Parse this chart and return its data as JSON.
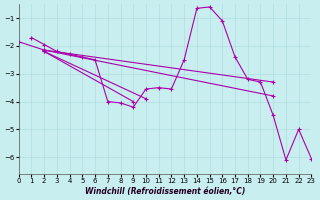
{
  "background_color": "#c8eef0",
  "grid_color": "#b0dde0",
  "line_color": "#aa00aa",
  "xlabel": "Windchill (Refroidissement éolien,°C)",
  "xlim": [
    0,
    23
  ],
  "ylim": [
    -6.6,
    -0.5
  ],
  "yticks": [
    -6,
    -5,
    -4,
    -3,
    -2,
    -1
  ],
  "xticks": [
    0,
    1,
    2,
    3,
    4,
    5,
    6,
    7,
    8,
    9,
    10,
    11,
    12,
    13,
    14,
    15,
    16,
    17,
    18,
    19,
    20,
    21,
    22,
    23
  ],
  "lines": [
    {
      "x": [
        1,
        2,
        3,
        4,
        5,
        6,
        7,
        8,
        9,
        10,
        11,
        12,
        13,
        14,
        15,
        16,
        17,
        18,
        19,
        20,
        21,
        22,
        23
      ],
      "y": [
        -1.7,
        -1.95,
        -2.2,
        -2.3,
        -2.4,
        -2.5,
        -4.0,
        -4.05,
        -4.2,
        -3.55,
        -3.5,
        -3.55,
        -2.5,
        -0.65,
        -0.6,
        -1.1,
        -2.4,
        -3.2,
        -3.3,
        -4.5,
        -6.1,
        -5.0,
        -6.05
      ]
    },
    {
      "x": [
        0,
        2,
        20
      ],
      "y": [
        -1.85,
        -2.15,
        -3.3
      ]
    },
    {
      "x": [
        2,
        20
      ],
      "y": [
        -2.15,
        -3.8
      ]
    },
    {
      "x": [
        2,
        9
      ],
      "y": [
        -2.2,
        -4.0
      ]
    },
    {
      "x": [
        2,
        10
      ],
      "y": [
        -2.2,
        -3.9
      ]
    }
  ]
}
